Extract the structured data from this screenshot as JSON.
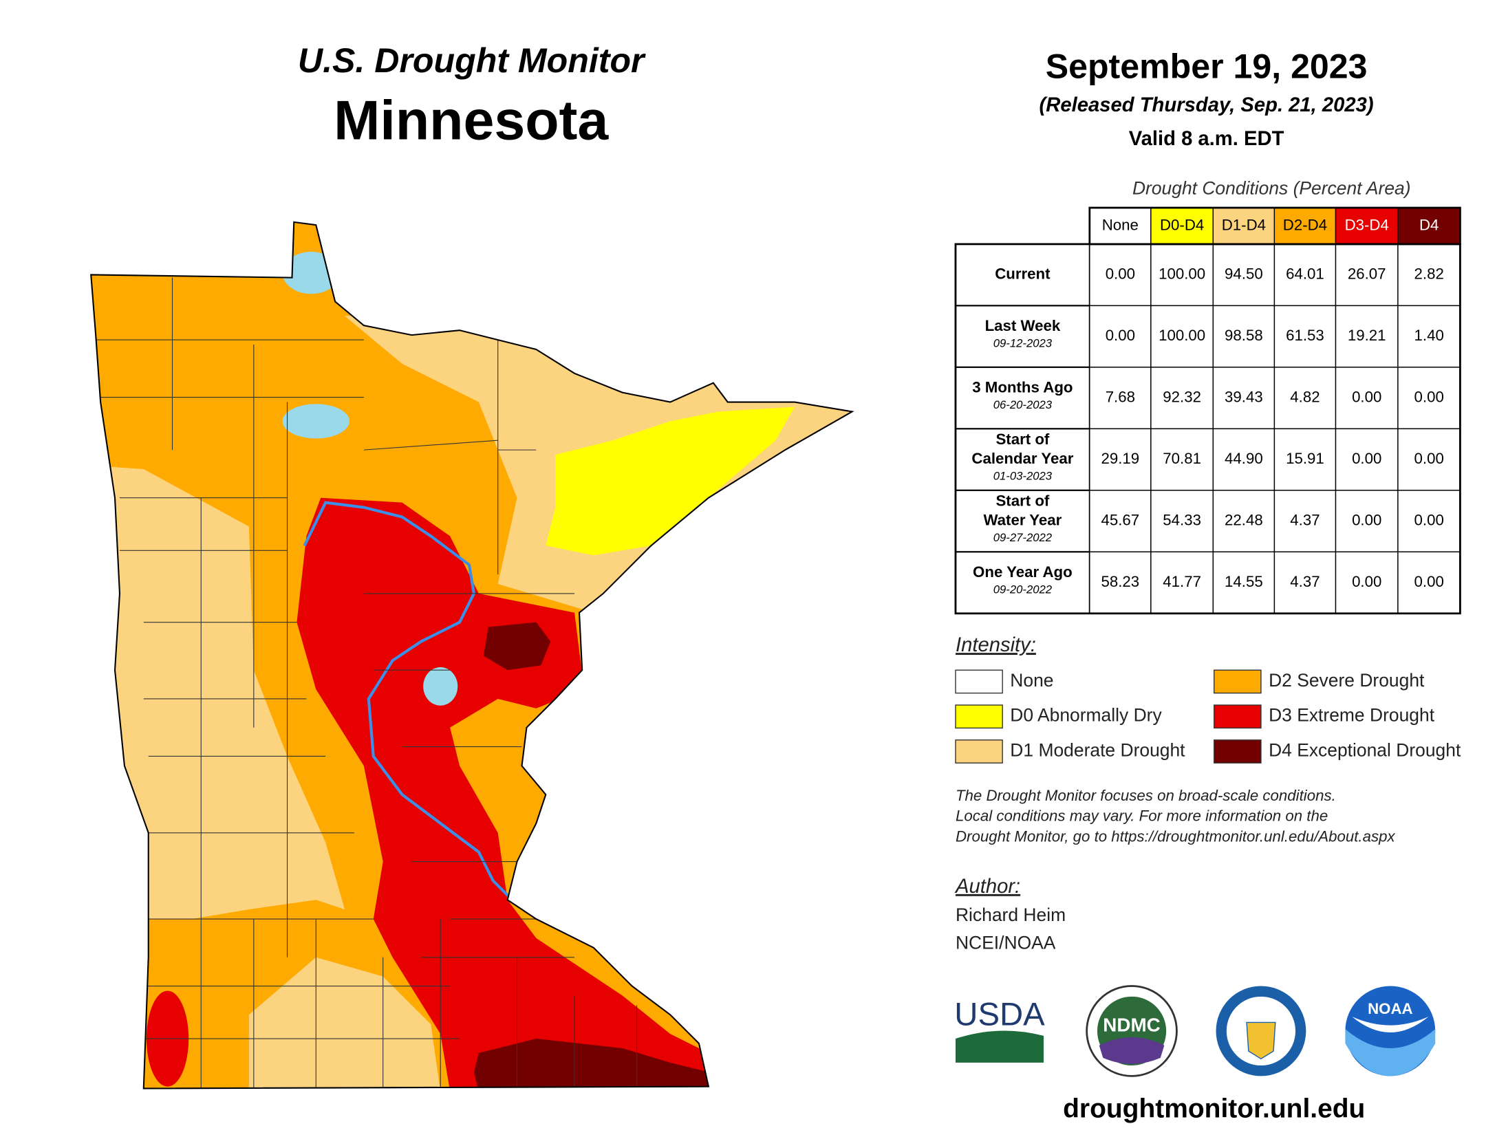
{
  "header": {
    "title": "U.S. Drought Monitor",
    "state": "Minnesota",
    "date": "September 19, 2023",
    "released": "(Released Thursday, Sep. 21, 2023)",
    "valid": "Valid 8 a.m. EDT"
  },
  "table": {
    "caption": "Drought Conditions (Percent Area)",
    "columns": [
      {
        "label": "None",
        "color": "#ffffff",
        "text_color": "#000000"
      },
      {
        "label": "D0-D4",
        "color": "#ffff00",
        "text_color": "#000000"
      },
      {
        "label": "D1-D4",
        "color": "#fcd37f",
        "text_color": "#000000"
      },
      {
        "label": "D2-D4",
        "color": "#ffaa00",
        "text_color": "#000000"
      },
      {
        "label": "D3-D4",
        "color": "#e60000",
        "text_color": "#ffffff"
      },
      {
        "label": "D4",
        "color": "#730000",
        "text_color": "#ffffff"
      }
    ],
    "rows": [
      {
        "label": [
          "Current"
        ],
        "values": [
          "0.00",
          "100.00",
          "94.50",
          "64.01",
          "26.07",
          "2.82"
        ]
      },
      {
        "label": [
          "Last Week"
        ],
        "date": "09-12-2023",
        "values": [
          "0.00",
          "100.00",
          "98.58",
          "61.53",
          "19.21",
          "1.40"
        ]
      },
      {
        "label": [
          "3 Months Ago"
        ],
        "date": "06-20-2023",
        "values": [
          "7.68",
          "92.32",
          "39.43",
          "4.82",
          "0.00",
          "0.00"
        ]
      },
      {
        "label": [
          "Start of",
          "Calendar Year"
        ],
        "date": "01-03-2023",
        "values": [
          "29.19",
          "70.81",
          "44.90",
          "15.91",
          "0.00",
          "0.00"
        ]
      },
      {
        "label": [
          "Start of",
          "Water Year"
        ],
        "date": "09-27-2022",
        "values": [
          "45.67",
          "54.33",
          "22.48",
          "4.37",
          "0.00",
          "0.00"
        ]
      },
      {
        "label": [
          "One Year Ago"
        ],
        "date": "09-20-2022",
        "values": [
          "58.23",
          "41.77",
          "14.55",
          "4.37",
          "0.00",
          "0.00"
        ]
      }
    ]
  },
  "legend": {
    "title": "Intensity:",
    "items": [
      {
        "label": "None",
        "color": "#ffffff"
      },
      {
        "label": "D0 Abnormally Dry",
        "color": "#ffff00"
      },
      {
        "label": "D1 Moderate Drought",
        "color": "#fcd37f"
      },
      {
        "label": "D2 Severe Drought",
        "color": "#ffaa00"
      },
      {
        "label": "D3 Extreme Drought",
        "color": "#e60000"
      },
      {
        "label": "D4 Exceptional Drought",
        "color": "#730000"
      }
    ]
  },
  "note": [
    "The Drought Monitor focuses on broad-scale conditions.",
    "Local conditions may vary. For more information on the",
    "Drought Monitor, go to https://droughtmonitor.unl.edu/About.aspx"
  ],
  "author": {
    "title": "Author:",
    "lines": [
      "Richard Heim",
      "NCEI/NOAA"
    ]
  },
  "logos": {
    "usda": "USDA",
    "ndmc": "NDMC",
    "noaa": "NOAA"
  },
  "footer": "droughtmonitor.unl.edu"
}
